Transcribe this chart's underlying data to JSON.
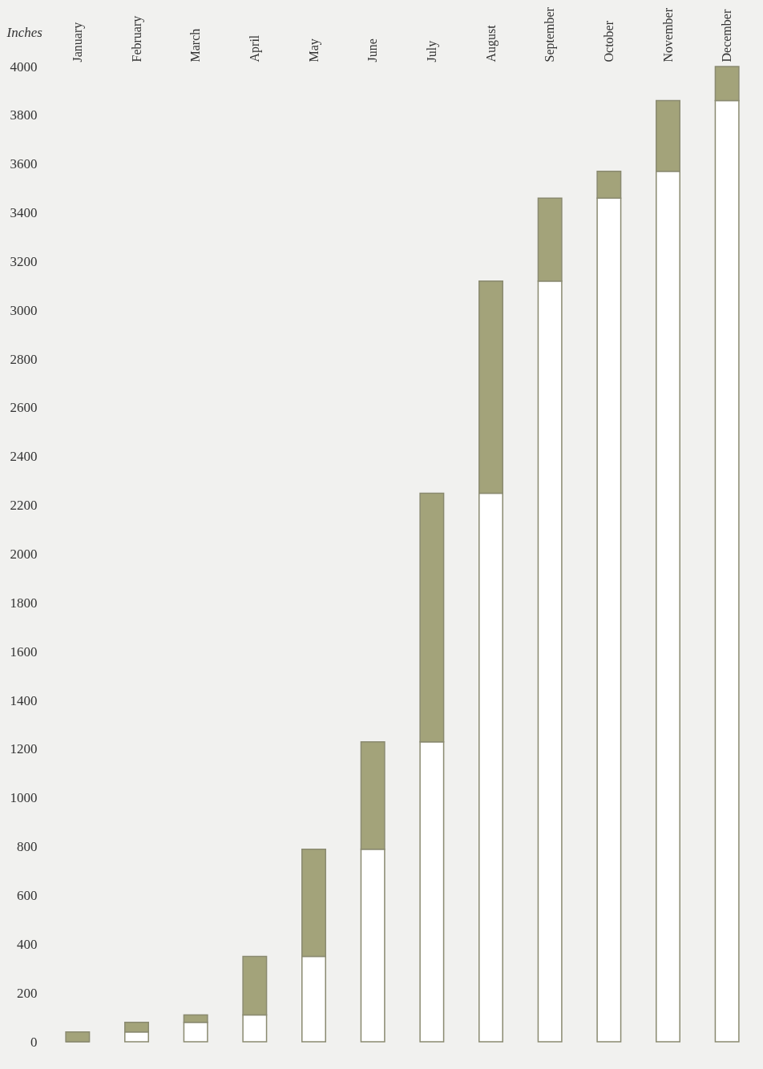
{
  "chart_data": {
    "type": "bar",
    "stacked": true,
    "ylabel": "Inches",
    "categories": [
      "January",
      "February",
      "March",
      "April",
      "May",
      "June",
      "July",
      "August",
      "September",
      "October",
      "November",
      "December"
    ],
    "series": [
      {
        "color": "#ffffff",
        "values": [
          0,
          40,
          80,
          110,
          350,
          790,
          1230,
          2250,
          3120,
          3460,
          3570,
          3860
        ]
      },
      {
        "color": "#a3a37a",
        "values": [
          40,
          40,
          30,
          240,
          440,
          440,
          1020,
          870,
          340,
          110,
          290,
          140
        ]
      }
    ],
    "ylim": [
      0,
      4000
    ],
    "yticks": [
      0,
      200,
      400,
      600,
      800,
      1000,
      1200,
      1400,
      1600,
      1800,
      2000,
      2200,
      2400,
      2600,
      2800,
      3000,
      3200,
      3400,
      3600,
      3800,
      4000
    ],
    "grid": false,
    "legend": false
  }
}
